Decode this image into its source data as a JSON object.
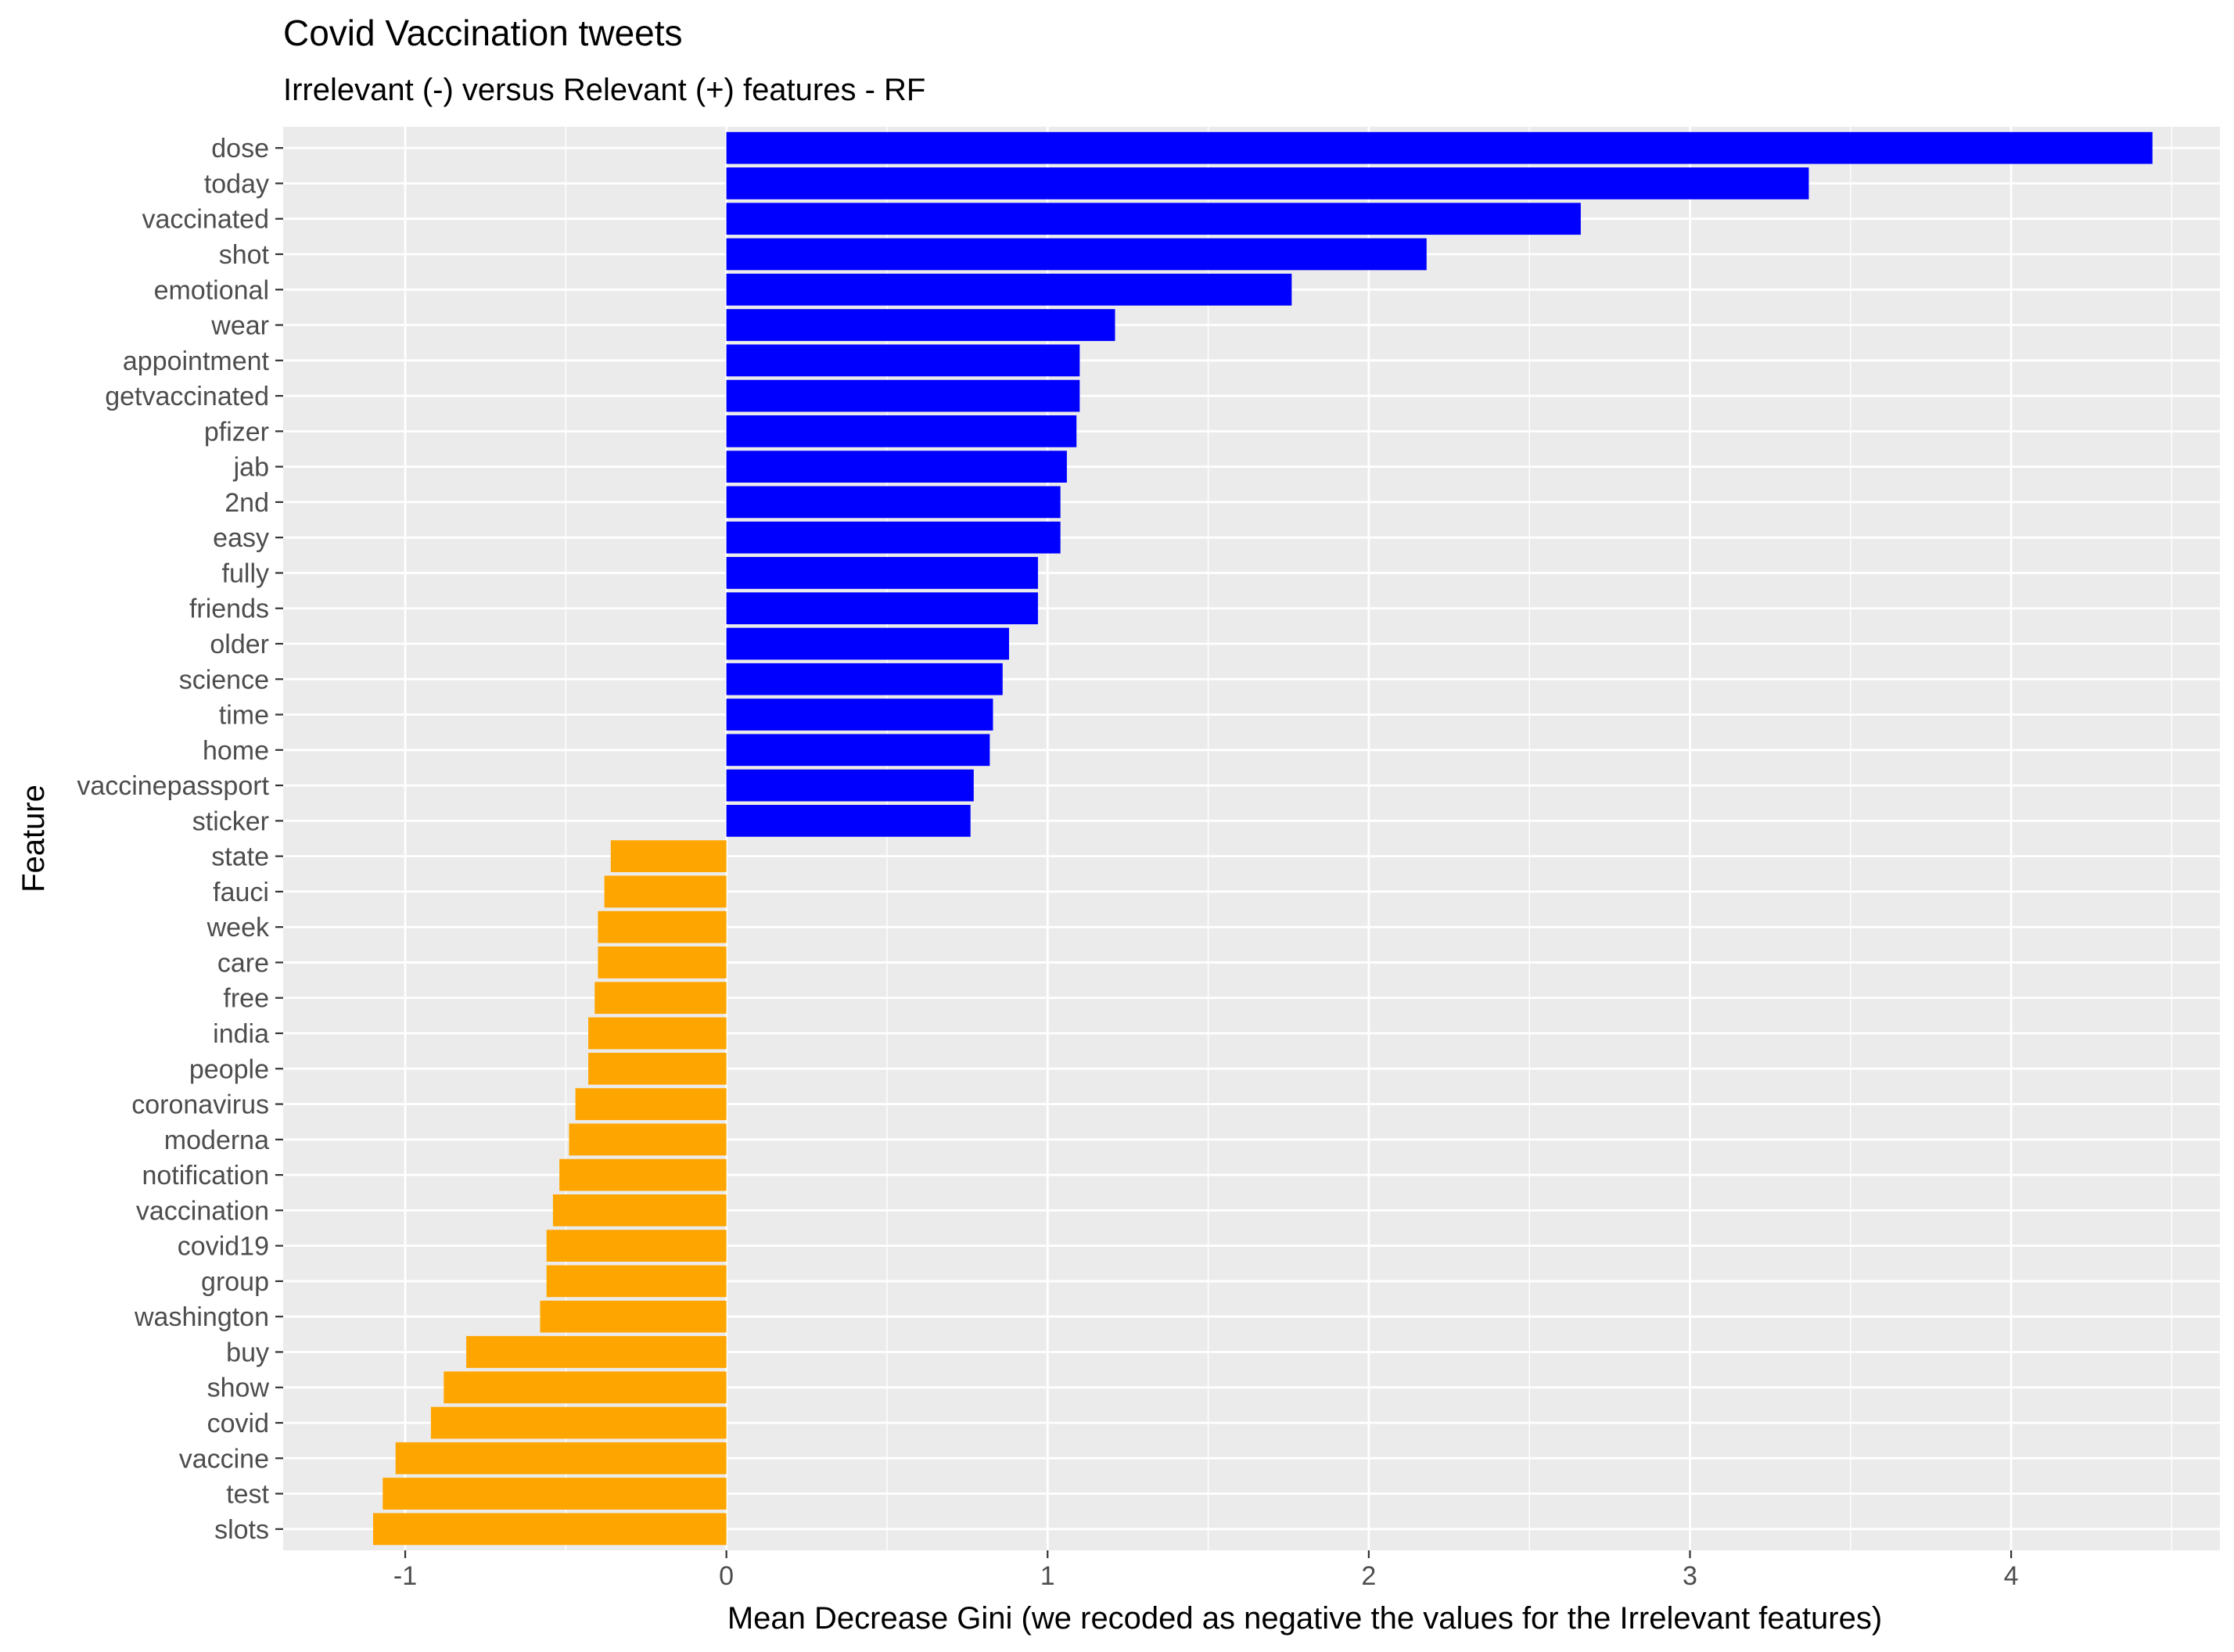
{
  "chart_data": {
    "type": "bar",
    "orientation": "horizontal",
    "title": "Covid Vaccination tweets",
    "subtitle": "Irrelevant (-) versus Relevant (+) features - RF",
    "xlabel": "Mean Decrease Gini (we recoded as negative the values for the Irrelevant features)",
    "ylabel": "Feature",
    "xlim": [
      -1.38,
      4.65
    ],
    "xticks": [
      -1,
      0,
      1,
      2,
      3,
      4
    ],
    "xtick_labels": [
      "-1",
      "0",
      "1",
      "2",
      "3",
      "4"
    ],
    "grid": true,
    "legend": "none",
    "colors": {
      "relevant": "#0000ff",
      "irrelevant": "#ffa500",
      "panel": "#ebebeb",
      "grid": "#ffffff"
    },
    "categories": [
      "dose",
      "today",
      "vaccinated",
      "shot",
      "emotional",
      "wear",
      "appointment",
      "getvaccinated",
      "pfizer",
      "jab",
      "2nd",
      "easy",
      "fully",
      "friends",
      "older",
      "science",
      "time",
      "home",
      "vaccinepassport",
      "sticker",
      "state",
      "fauci",
      "week",
      "care",
      "free",
      "india",
      "people",
      "coronavirus",
      "moderna",
      "notification",
      "vaccination",
      "covid19",
      "group",
      "washington",
      "buy",
      "show",
      "covid",
      "vaccine",
      "test",
      "slots"
    ],
    "values": [
      4.44,
      3.37,
      2.66,
      2.18,
      1.76,
      1.21,
      1.1,
      1.1,
      1.09,
      1.06,
      1.04,
      1.04,
      0.97,
      0.97,
      0.88,
      0.86,
      0.83,
      0.82,
      0.77,
      0.76,
      -0.36,
      -0.38,
      -0.4,
      -0.4,
      -0.41,
      -0.43,
      -0.43,
      -0.47,
      -0.49,
      -0.52,
      -0.54,
      -0.56,
      -0.56,
      -0.58,
      -0.81,
      -0.88,
      -0.92,
      -1.03,
      -1.07,
      -1.1
    ]
  }
}
